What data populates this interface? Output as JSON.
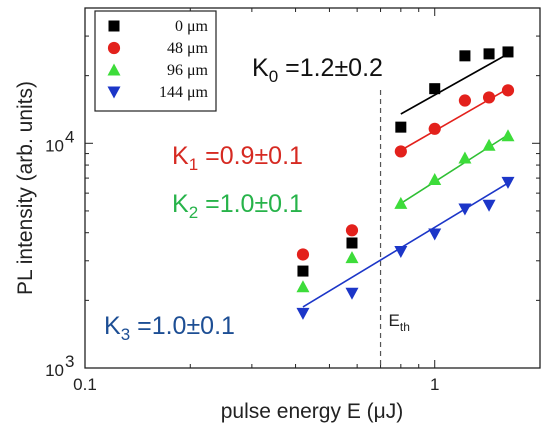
{
  "chart_data": {
    "type": "scatter",
    "xscale": "log",
    "yscale": "log",
    "xlim": [
      0.1,
      2
    ],
    "ylim": [
      1000,
      40000
    ],
    "xlabel": "pulse energy E (μJ)",
    "ylabel": "PL intensity (arb. units)",
    "x_ticks": [
      {
        "value": 0.1,
        "label": "0.1"
      },
      {
        "value": 1,
        "label": "1"
      }
    ],
    "y_ticks": [
      {
        "value": 1000,
        "base": "10",
        "exp": "3"
      },
      {
        "value": 10000,
        "base": "10",
        "exp": "4"
      }
    ],
    "legend_position": "top-left",
    "series": [
      {
        "name": "0 μm",
        "marker": "square",
        "color": "#000000",
        "x": [
          0.42,
          0.58,
          0.8,
          1.0,
          1.22,
          1.43,
          1.62
        ],
        "y": [
          2700,
          3600,
          11800,
          17500,
          24500,
          25000,
          25500
        ],
        "fit": {
          "x": [
            0.8,
            1.62
          ],
          "y": [
            13500,
            25000
          ]
        }
      },
      {
        "name": "48 μm",
        "marker": "circle",
        "color": "#e3211c",
        "x": [
          0.42,
          0.58,
          0.8,
          1.0,
          1.22,
          1.43,
          1.62
        ],
        "y": [
          3200,
          4100,
          9200,
          11600,
          15500,
          16000,
          17200
        ],
        "fit": {
          "x": [
            0.8,
            1.62
          ],
          "y": [
            9300,
            17500
          ]
        }
      },
      {
        "name": "96 μm",
        "marker": "triangle-up",
        "color": "#3ddc3a",
        "x": [
          0.42,
          0.58,
          0.8,
          1.0,
          1.22,
          1.43,
          1.62
        ],
        "y": [
          2300,
          3100,
          5400,
          6900,
          8600,
          9800,
          10800
        ],
        "fit": {
          "x": [
            0.8,
            1.62
          ],
          "y": [
            5400,
            10900
          ]
        }
      },
      {
        "name": "144 μm",
        "marker": "triangle-down",
        "color": "#1c36c8",
        "x": [
          0.42,
          0.58,
          0.8,
          1.0,
          1.22,
          1.43,
          1.62
        ],
        "y": [
          1750,
          2150,
          3300,
          3950,
          5100,
          5300,
          6700
        ],
        "fit": {
          "x": [
            0.42,
            1.62
          ],
          "y": [
            1870,
            6650
          ]
        }
      }
    ],
    "annotations": [
      {
        "base": "K",
        "sub": "0",
        "text": " =1.2±0.2",
        "color": "#111111"
      },
      {
        "base": "K",
        "sub": "1",
        "text": "  =0.9±0.1",
        "color": "#d62a22"
      },
      {
        "base": "K",
        "sub": "2",
        "text": "  =1.0±0.1",
        "color": "#27b34a"
      },
      {
        "base": "K",
        "sub": "3",
        "text": "  =1.0±0.1",
        "color": "#1d4e94"
      }
    ],
    "threshold": {
      "x": 0.7,
      "base": "E",
      "sub": "th"
    }
  }
}
